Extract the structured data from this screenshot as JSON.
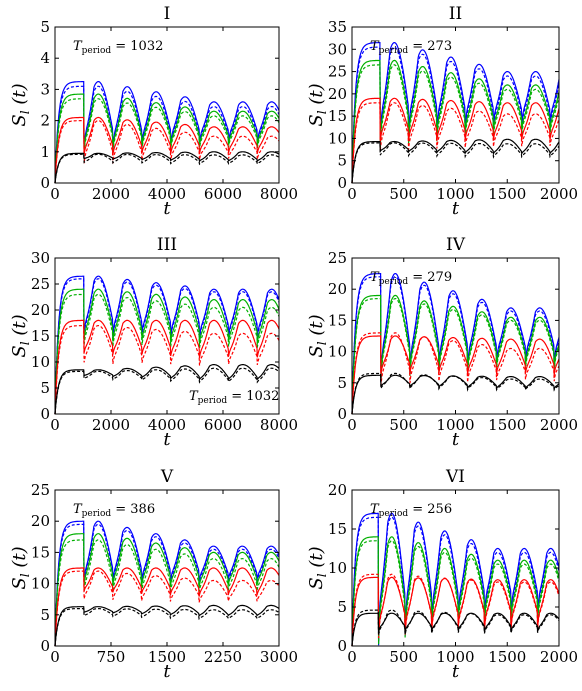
{
  "chart_data": [
    {
      "type": "line",
      "title": "I",
      "xlabel": "t",
      "ylabel": "S_l (t)",
      "xlim": [
        0,
        8000
      ],
      "ylim": [
        0,
        5
      ],
      "xticks": [
        "0",
        "2000",
        "4000",
        "6000",
        "8000"
      ],
      "yticks": [
        "0",
        "1",
        "2",
        "3",
        "4",
        "5"
      ],
      "annotation": {
        "symbol": "T",
        "subscript": "period",
        "value": "= 1032",
        "placement": "top-left"
      },
      "period": 1032,
      "series": [
        {
          "color": "#0000ff",
          "style": "solid",
          "peak": 3.25,
          "trough": 1.7,
          "plateau": 2.6,
          "dip": 0.5
        },
        {
          "color": "#0000ff",
          "style": "dashed",
          "peak": 3.1,
          "trough": 1.62,
          "plateau": 2.45,
          "dip": 0.5
        },
        {
          "color": "#00b000",
          "style": "solid",
          "peak": 2.85,
          "trough": 1.55,
          "plateau": 2.3,
          "dip": 0.45
        },
        {
          "color": "#00b000",
          "style": "dashed",
          "peak": 2.7,
          "trough": 1.45,
          "plateau": 2.15,
          "dip": 0.45
        },
        {
          "color": "#ff0000",
          "style": "solid",
          "peak": 2.1,
          "trough": 1.2,
          "plateau": 1.8,
          "dip": 0.4
        },
        {
          "color": "#ff0000",
          "style": "dashed",
          "peak": 2.0,
          "trough": 1.0,
          "plateau": 1.5,
          "dip": 0.45
        },
        {
          "color": "#000000",
          "style": "solid",
          "peak": 0.95,
          "trough": 0.8,
          "plateau": 1.0,
          "dip": 0.18
        },
        {
          "color": "#000000",
          "style": "dashed",
          "peak": 0.92,
          "trough": 0.7,
          "plateau": 0.9,
          "dip": 0.2
        }
      ]
    },
    {
      "type": "line",
      "title": "II",
      "xlabel": "t",
      "ylabel": "S_l (t)",
      "xlim": [
        0,
        2000
      ],
      "ylim": [
        0,
        35
      ],
      "xticks": [
        "0",
        "500",
        "1000",
        "1500",
        "2000"
      ],
      "yticks": [
        "0",
        "5",
        "10",
        "15",
        "20",
        "25",
        "30",
        "35"
      ],
      "annotation": {
        "symbol": "T",
        "subscript": "period",
        "value": "= 273",
        "placement": "top-left"
      },
      "period": 273,
      "series": [
        {
          "color": "#0000ff",
          "style": "solid",
          "peak": 31.5,
          "trough": 17,
          "plateau": 25,
          "dip": 0.5
        },
        {
          "color": "#0000ff",
          "style": "dashed",
          "peak": 30.5,
          "trough": 16,
          "plateau": 24,
          "dip": 0.5
        },
        {
          "color": "#00b000",
          "style": "solid",
          "peak": 27.5,
          "trough": 15,
          "plateau": 22,
          "dip": 0.5
        },
        {
          "color": "#00b000",
          "style": "dashed",
          "peak": 26.5,
          "trough": 14,
          "plateau": 21,
          "dip": 0.5
        },
        {
          "color": "#ff0000",
          "style": "solid",
          "peak": 19,
          "trough": 12,
          "plateau": 18,
          "dip": 0.4
        },
        {
          "color": "#ff0000",
          "style": "dashed",
          "peak": 18,
          "trough": 10.5,
          "plateau": 15.5,
          "dip": 0.45
        },
        {
          "color": "#000000",
          "style": "solid",
          "peak": 9.3,
          "trough": 7.5,
          "plateau": 9.8,
          "dip": 0.2
        },
        {
          "color": "#000000",
          "style": "dashed",
          "peak": 9.0,
          "trough": 6.8,
          "plateau": 8.8,
          "dip": 0.25
        }
      ]
    },
    {
      "type": "line",
      "title": "III",
      "xlabel": "t",
      "ylabel": "S_l (t)",
      "xlim": [
        0,
        8000
      ],
      "ylim": [
        0,
        30
      ],
      "xticks": [
        "0",
        "2000",
        "4000",
        "6000",
        "8000"
      ],
      "yticks": [
        "0",
        "5",
        "10",
        "15",
        "20",
        "25",
        "30"
      ],
      "annotation": {
        "symbol": "T",
        "subscript": "period",
        "value": "= 1032",
        "placement": "bottom-right"
      },
      "period": 1032,
      "series": [
        {
          "color": "#0000ff",
          "style": "solid",
          "peak": 26.5,
          "trough": 18,
          "plateau": 24,
          "dip": 0.35
        },
        {
          "color": "#0000ff",
          "style": "dashed",
          "peak": 26,
          "trough": 17.5,
          "plateau": 23.5,
          "dip": 0.35
        },
        {
          "color": "#00b000",
          "style": "solid",
          "peak": 24,
          "trough": 16.5,
          "plateau": 22,
          "dip": 0.35
        },
        {
          "color": "#00b000",
          "style": "dashed",
          "peak": 23,
          "trough": 15.5,
          "plateau": 20.5,
          "dip": 0.35
        },
        {
          "color": "#ff0000",
          "style": "solid",
          "peak": 18,
          "trough": 13,
          "plateau": 18,
          "dip": 0.3
        },
        {
          "color": "#ff0000",
          "style": "dashed",
          "peak": 17,
          "trough": 11.5,
          "plateau": 15.5,
          "dip": 0.35
        },
        {
          "color": "#000000",
          "style": "solid",
          "peak": 8.5,
          "trough": 7.5,
          "plateau": 9.5,
          "dip": 0.15
        },
        {
          "color": "#000000",
          "style": "dashed",
          "peak": 8.2,
          "trough": 7.0,
          "plateau": 8.8,
          "dip": 0.18
        }
      ]
    },
    {
      "type": "line",
      "title": "IV",
      "xlabel": "t",
      "ylabel": "S_l (t)",
      "xlim": [
        0,
        2000
      ],
      "ylim": [
        0,
        25
      ],
      "xticks": [
        "0",
        "500",
        "1000",
        "1500",
        "2000"
      ],
      "yticks": [
        "0",
        "5",
        "10",
        "15",
        "20",
        "25"
      ],
      "annotation": {
        "symbol": "T",
        "subscript": "period",
        "value": "= 279",
        "placement": "top-left"
      },
      "period": 279,
      "series": [
        {
          "color": "#0000ff",
          "style": "solid",
          "peak": 22.5,
          "trough": 11,
          "plateau": 17,
          "dip": 0.5
        },
        {
          "color": "#0000ff",
          "style": "dashed",
          "peak": 22,
          "trough": 10.5,
          "plateau": 16.5,
          "dip": 0.5
        },
        {
          "color": "#00b000",
          "style": "solid",
          "peak": 19,
          "trough": 10,
          "plateau": 15.5,
          "dip": 0.5
        },
        {
          "color": "#00b000",
          "style": "dashed",
          "peak": 18.5,
          "trough": 9.5,
          "plateau": 15,
          "dip": 0.5
        },
        {
          "color": "#ff0000",
          "style": "solid",
          "peak": 12.5,
          "trough": 8,
          "plateau": 12,
          "dip": 0.4
        },
        {
          "color": "#ff0000",
          "style": "dashed",
          "peak": 13,
          "trough": 7,
          "plateau": 10.5,
          "dip": 0.45
        },
        {
          "color": "#000000",
          "style": "solid",
          "peak": 6.2,
          "trough": 4.8,
          "plateau": 6.0,
          "dip": 0.3
        },
        {
          "color": "#000000",
          "style": "dashed",
          "peak": 6.5,
          "trough": 4.6,
          "plateau": 5.6,
          "dip": 0.3
        }
      ]
    },
    {
      "type": "line",
      "title": "V",
      "xlabel": "t",
      "ylabel": "S_l (t)",
      "xlim": [
        0,
        3000
      ],
      "ylim": [
        0,
        25
      ],
      "xticks": [
        "0",
        "750",
        "1500",
        "2250",
        "3000"
      ],
      "yticks": [
        "0",
        "5",
        "10",
        "15",
        "20",
        "25"
      ],
      "annotation": {
        "symbol": "T",
        "subscript": "period",
        "value": "= 386",
        "placement": "top-left"
      },
      "period": 386,
      "series": [
        {
          "color": "#0000ff",
          "style": "solid",
          "peak": 20,
          "trough": 12.5,
          "plateau": 16,
          "dip": 0.35
        },
        {
          "color": "#0000ff",
          "style": "dashed",
          "peak": 19.5,
          "trough": 12,
          "plateau": 15.5,
          "dip": 0.35
        },
        {
          "color": "#00b000",
          "style": "solid",
          "peak": 18,
          "trough": 11.5,
          "plateau": 15,
          "dip": 0.35
        },
        {
          "color": "#00b000",
          "style": "dashed",
          "peak": 17,
          "trough": 10.5,
          "plateau": 14,
          "dip": 0.35
        },
        {
          "color": "#ff0000",
          "style": "solid",
          "peak": 12.5,
          "trough": 9.5,
          "plateau": 12.5,
          "dip": 0.3
        },
        {
          "color": "#ff0000",
          "style": "dashed",
          "peak": 12,
          "trough": 8.5,
          "plateau": 10.5,
          "dip": 0.35
        },
        {
          "color": "#000000",
          "style": "solid",
          "peak": 6.3,
          "trough": 5.5,
          "plateau": 6.5,
          "dip": 0.15
        },
        {
          "color": "#000000",
          "style": "dashed",
          "peak": 6.0,
          "trough": 5.0,
          "plateau": 5.8,
          "dip": 0.18
        }
      ]
    },
    {
      "type": "line",
      "title": "VI",
      "xlabel": "t",
      "ylabel": "S_l (t)",
      "xlim": [
        0,
        2000
      ],
      "ylim": [
        0,
        20
      ],
      "xticks": [
        "0",
        "500",
        "1000",
        "1500",
        "2000"
      ],
      "yticks": [
        "0",
        "5",
        "10",
        "15",
        "20"
      ],
      "annotation": {
        "symbol": "T",
        "subscript": "period",
        "value": "= 256",
        "placement": "top-left"
      },
      "period": 256,
      "series": [
        {
          "color": "#0000ff",
          "style": "solid",
          "peak": 17,
          "trough": 6.5,
          "plateau": 12.5,
          "dip": 0.6
        },
        {
          "color": "#0000ff",
          "style": "dashed",
          "peak": 16.5,
          "trough": 6,
          "plateau": 12,
          "dip": 0.6
        },
        {
          "color": "#00b000",
          "style": "solid",
          "peak": 14,
          "trough": 5.5,
          "plateau": 11,
          "dip": 0.6
        },
        {
          "color": "#00b000",
          "style": "dashed",
          "peak": 13.5,
          "trough": 5,
          "plateau": 10.5,
          "dip": 0.6
        },
        {
          "color": "#ff0000",
          "style": "solid",
          "peak": 8.8,
          "trough": 4,
          "plateau": 8.5,
          "dip": 0.55
        },
        {
          "color": "#ff0000",
          "style": "dashed",
          "peak": 9.2,
          "trough": 3.8,
          "plateau": 8.2,
          "dip": 0.55
        },
        {
          "color": "#000000",
          "style": "solid",
          "peak": 4.2,
          "trough": 2.5,
          "plateau": 4.2,
          "dip": 0.45
        },
        {
          "color": "#000000",
          "style": "dashed",
          "peak": 4.6,
          "trough": 2.3,
          "plateau": 4.0,
          "dip": 0.45
        }
      ]
    }
  ]
}
